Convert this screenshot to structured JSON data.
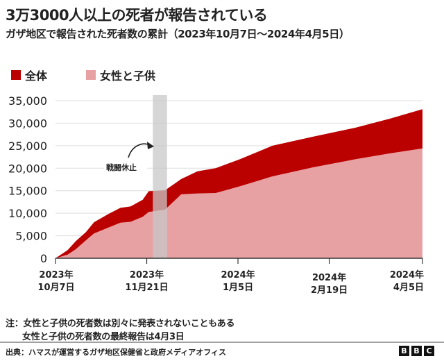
{
  "header": {
    "title": "3万3000人以上の死者が報告されている",
    "subtitle": "ガザ地区で報告された死者数の累計（2023年10月7日～2024年4月5日）"
  },
  "legend": [
    {
      "label": "全体",
      "color": "#bb0000"
    },
    {
      "label": "女性と子供",
      "color": "#e8a1a3"
    }
  ],
  "annotation": {
    "label": "戦闘休止"
  },
  "notes": {
    "line1": "注：女性と子供の死者数は別々に発表されないこともある",
    "line2": "女性と子供の死者数の最終報告は4月3日"
  },
  "footer": {
    "source": "出典：ハマスが運営するガザ地区保健省と政府メディアオフィス",
    "logo": [
      "B",
      "B",
      "C"
    ]
  },
  "colors": {
    "total": "#bb0000",
    "women_children": "#e8a1a3",
    "ceasefire_band": "#c8c8c8",
    "grid": "#dddddd",
    "axis": "#333333"
  },
  "chart_data": {
    "type": "area",
    "title": "3万3000人以上の死者が報告されている",
    "subtitle": "ガザ地区で報告された死者数の累計（2023年10月7日～2024年4月5日）",
    "xlabel": "",
    "ylabel": "",
    "ylim": [
      0,
      35000
    ],
    "yticks": [
      0,
      5000,
      10000,
      15000,
      20000,
      25000,
      30000,
      35000
    ],
    "ytick_labels": [
      "0",
      "5,000",
      "10,000",
      "15,000",
      "20,000",
      "25,000",
      "30,000",
      "35,000"
    ],
    "xtick_labels": [
      {
        "line1": "2023年",
        "line2": "10月7日",
        "day": 0
      },
      {
        "line1": "2023年",
        "line2": "11月21日",
        "day": 45
      },
      {
        "line1": "2024年",
        "line2": "1月5日",
        "day": 90
      },
      {
        "line1": "2024年",
        "line2": "2月19日",
        "day": 135
      },
      {
        "line1": "2024年",
        "line2": "4月5日",
        "day": 181
      }
    ],
    "grid": true,
    "legend_position": "top-left",
    "x_days": [
      0,
      6,
      10,
      15,
      19,
      26,
      32,
      37,
      43,
      46,
      54,
      62,
      70,
      79,
      91,
      107,
      127,
      148,
      165,
      181
    ],
    "series": [
      {
        "name": "全体",
        "values": [
          0,
          1800,
          3800,
          5800,
          8000,
          9800,
          11200,
          11500,
          13000,
          14900,
          15100,
          17600,
          19300,
          20000,
          22000,
          25000,
          27000,
          29000,
          31000,
          33100
        ]
      },
      {
        "name": "女性と子供",
        "values": [
          0,
          800,
          2000,
          4000,
          5500,
          6800,
          7900,
          8100,
          9200,
          10300,
          10800,
          14200,
          14400,
          14500,
          16000,
          18200,
          20200,
          22000,
          23300,
          24400
        ]
      }
    ],
    "annotations": [
      {
        "text": "戦闘休止",
        "type": "shaded_band",
        "day_start": 48,
        "day_end": 55
      }
    ]
  }
}
